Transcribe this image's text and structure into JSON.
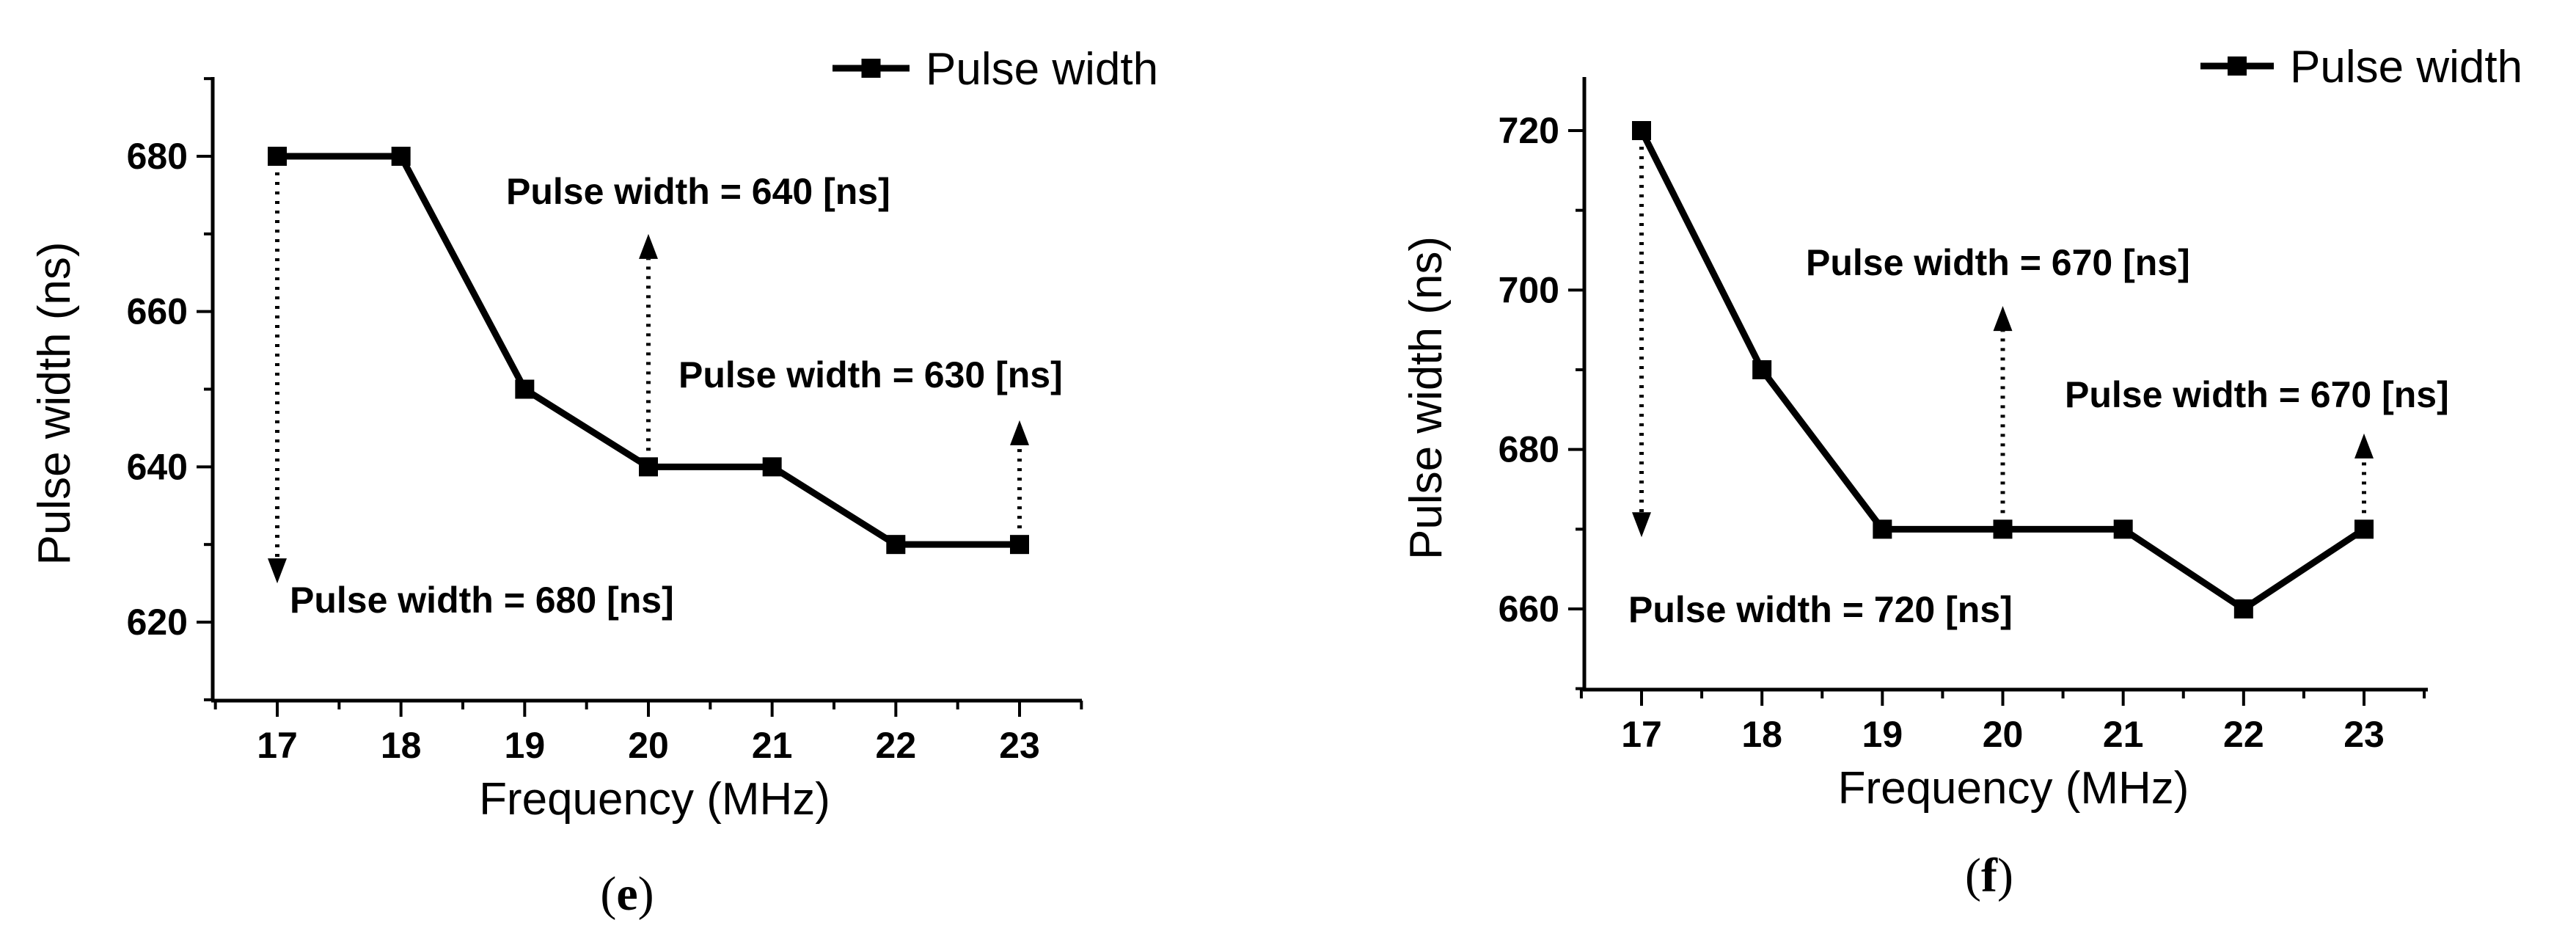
{
  "chart_data": [
    {
      "type": "line",
      "panel_label": "e",
      "xlabel": "Frequency (MHz)",
      "ylabel": "Pulse width (ns)",
      "x": [
        17,
        18,
        19,
        20,
        21,
        22,
        23
      ],
      "xticks": [
        "17",
        "18",
        "19",
        "20",
        "21",
        "22",
        "23"
      ],
      "xlim": [
        16.5,
        23.5
      ],
      "yticks": [
        620,
        640,
        660,
        680
      ],
      "ylim": [
        610,
        690
      ],
      "series": [
        {
          "name": "Pulse width",
          "values": [
            680,
            680,
            650,
            640,
            640,
            630,
            630
          ]
        }
      ],
      "legend_position": "top-right",
      "annotations": [
        {
          "text": "Pulse width = 680 [ns]",
          "x": 17,
          "direction": "down",
          "from": 680,
          "to": 625
        },
        {
          "text": "Pulse width = 640 [ns]",
          "x": 20,
          "direction": "up",
          "from": 640,
          "to": 670
        },
        {
          "text": "Pulse width = 630 [ns]",
          "x": 23,
          "direction": "up",
          "from": 630,
          "to": 646
        }
      ]
    },
    {
      "type": "line",
      "panel_label": "f",
      "xlabel": "Frequency (MHz)",
      "ylabel": "Pulse width (ns)",
      "x": [
        17,
        18,
        19,
        20,
        21,
        22,
        23
      ],
      "xticks": [
        "17",
        "18",
        "19",
        "20",
        "21",
        "22",
        "23"
      ],
      "xlim": [
        16.5,
        23.5
      ],
      "yticks": [
        660,
        680,
        700,
        720
      ],
      "ylim": [
        650,
        730
      ],
      "series": [
        {
          "name": "Pulse width",
          "values": [
            720,
            690,
            670,
            670,
            670,
            660,
            670
          ]
        }
      ],
      "legend_position": "top-right",
      "annotations": [
        {
          "text": "Pulse width = 720 [ns]",
          "x": 17,
          "direction": "down",
          "from": 720,
          "to": 669
        },
        {
          "text": "Pulse width = 670 [ns]",
          "x": 20,
          "direction": "up",
          "from": 670,
          "to": 698
        },
        {
          "text": "Pulse width = 670 [ns]",
          "x": 23,
          "direction": "up",
          "from": 670,
          "to": 682
        }
      ]
    }
  ]
}
